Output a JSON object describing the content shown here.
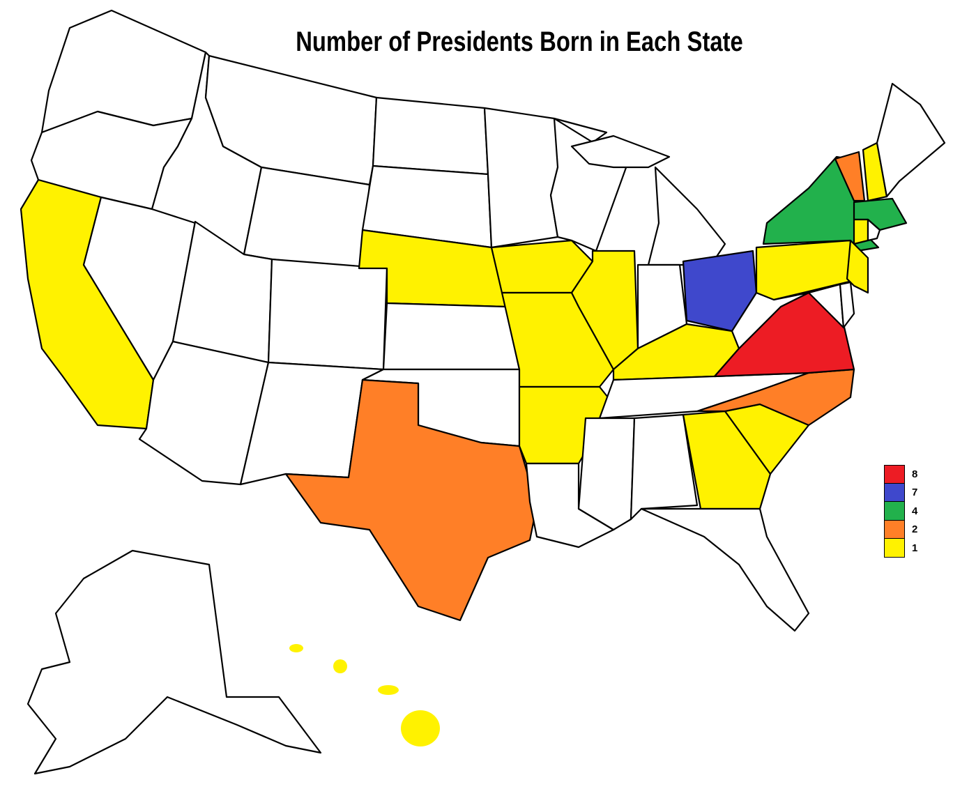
{
  "title": "Number of Presidents Born in Each State",
  "legend": [
    {
      "label": "8",
      "value": 8,
      "color": "#ED1C24"
    },
    {
      "label": "7",
      "value": 7,
      "color": "#3F48CC"
    },
    {
      "label": "4",
      "value": 4,
      "color": "#22B14C"
    },
    {
      "label": "2",
      "value": 2,
      "color": "#FF7F27"
    },
    {
      "label": "1",
      "value": 1,
      "color": "#FFF200"
    }
  ],
  "no_data_color": "#FFFFFF",
  "states": {
    "VA": 8,
    "OH": 7,
    "NY": 4,
    "MA": 4,
    "NC": 2,
    "TX": 2,
    "VT": 2,
    "CA": 1,
    "NE": 1,
    "IA": 1,
    "MO": 1,
    "IL": 1,
    "AR": 1,
    "KY": 1,
    "GA": 1,
    "SC": 1,
    "PA": 1,
    "NJ": 1,
    "NH": 1,
    "CT": 1,
    "HI": 1,
    "WA": 0,
    "OR": 0,
    "NV": 0,
    "ID": 0,
    "MT": 0,
    "WY": 0,
    "UT": 0,
    "AZ": 0,
    "CO": 0,
    "NM": 0,
    "ND": 0,
    "SD": 0,
    "KS": 0,
    "OK": 0,
    "MN": 0,
    "WI": 0,
    "MI": 0,
    "IN": 0,
    "TN": 0,
    "MS": 0,
    "AL": 0,
    "FL": 0,
    "LA": 0,
    "WV": 0,
    "MD": 0,
    "DE": 0,
    "ME": 0,
    "RI": 0,
    "AK": 0
  }
}
